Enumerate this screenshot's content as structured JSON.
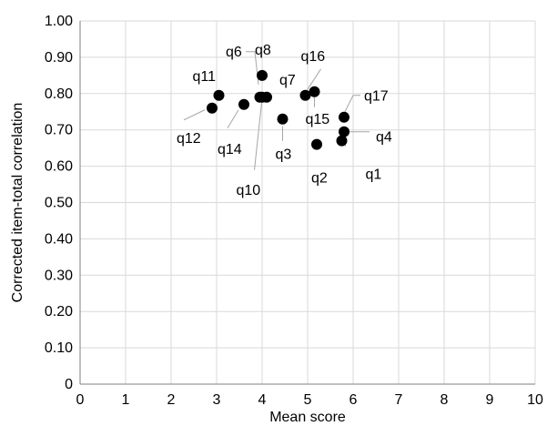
{
  "chart_data": {
    "type": "scatter",
    "title": "",
    "xlabel": "Mean score",
    "ylabel": "Corrected item-total correlation",
    "xlim": [
      0,
      10
    ],
    "ylim": [
      0,
      1
    ],
    "grid": true,
    "legend": "none",
    "x_ticks": [
      "0",
      "1",
      "2",
      "3",
      "4",
      "5",
      "6",
      "7",
      "8",
      "9",
      "10"
    ],
    "y_ticks": [
      "0",
      "0.10",
      "0.20",
      "0.30",
      "0.40",
      "0.50",
      "0.60",
      "0.70",
      "0.80",
      "0.90",
      "1.00"
    ],
    "points": [
      {
        "label": "q1",
        "x": 5.75,
        "y": 0.67
      },
      {
        "label": "q2",
        "x": 5.2,
        "y": 0.66
      },
      {
        "label": "q3",
        "x": 4.45,
        "y": 0.73
      },
      {
        "label": "q4",
        "x": 5.8,
        "y": 0.695
      },
      {
        "label": "q6",
        "x": 4.0,
        "y": 0.79
      },
      {
        "label": "q7",
        "x": 4.1,
        "y": 0.79
      },
      {
        "label": "q8",
        "x": 4.0,
        "y": 0.85
      },
      {
        "label": "q10",
        "x": 3.95,
        "y": 0.79
      },
      {
        "label": "q11",
        "x": 3.05,
        "y": 0.795
      },
      {
        "label": "q12",
        "x": 2.9,
        "y": 0.76
      },
      {
        "label": "q14",
        "x": 3.6,
        "y": 0.77
      },
      {
        "label": "q15",
        "x": 5.15,
        "y": 0.805
      },
      {
        "label": "q16",
        "x": 4.95,
        "y": 0.795
      },
      {
        "label": "q17",
        "x": 5.8,
        "y": 0.735
      }
    ]
  }
}
